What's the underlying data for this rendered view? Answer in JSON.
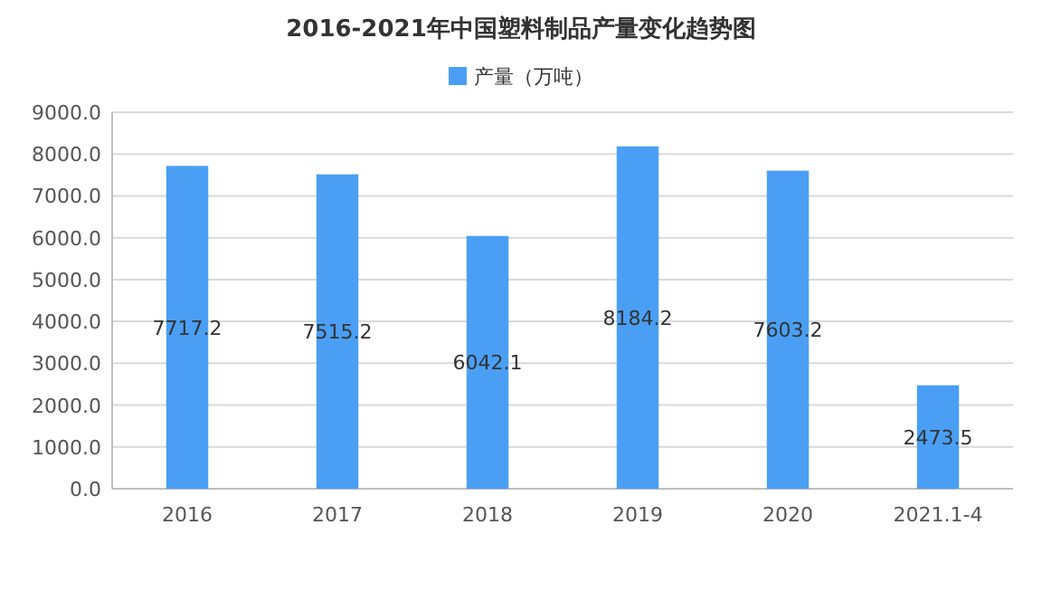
{
  "chart_data": {
    "type": "bar",
    "title": "2016-2021年中国塑料制品产量变化趋势图",
    "categories": [
      "2016",
      "2017",
      "2018",
      "2019",
      "2020",
      "2021.1-4"
    ],
    "series": [
      {
        "name": "产量（万吨）",
        "color": "#4a9ff5",
        "values": [
          7717.2,
          7515.2,
          6042.1,
          8184.2,
          7603.2,
          2473.5
        ]
      }
    ],
    "ylim": [
      0,
      9000
    ],
    "yticks": [
      {
        "value": 0,
        "label": "0.0"
      },
      {
        "value": 1000,
        "label": "1000.0"
      },
      {
        "value": 2000,
        "label": "2000.0"
      },
      {
        "value": 3000,
        "label": "3000.0"
      },
      {
        "value": 4000,
        "label": "4000.0"
      },
      {
        "value": 5000,
        "label": "5000.0"
      },
      {
        "value": 6000,
        "label": "6000.0"
      },
      {
        "value": 7000,
        "label": "7000.0"
      },
      {
        "value": 8000,
        "label": "8000.0"
      },
      {
        "value": 9000,
        "label": "9000.0"
      }
    ],
    "grid": "y",
    "legend": "top",
    "data_labels": true
  }
}
